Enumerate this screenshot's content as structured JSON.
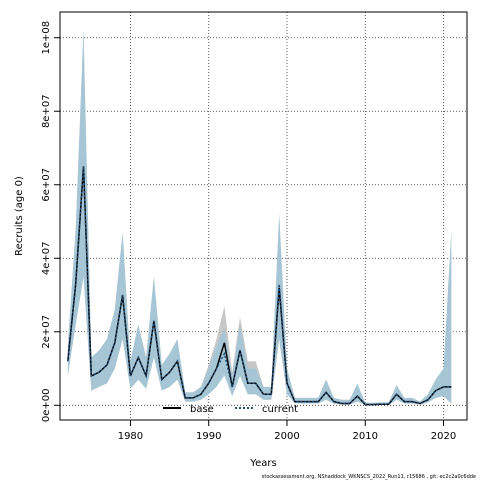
{
  "chart_data": {
    "type": "line",
    "title": "",
    "xlabel": "Years",
    "ylabel": "Recruits (age 0)",
    "xlim": [
      1971,
      2023
    ],
    "ylim": [
      -4000000,
      107000000
    ],
    "x_ticks": [
      1980,
      1990,
      2000,
      2010,
      2020
    ],
    "y_ticks": [
      0,
      20000000,
      40000000,
      60000000,
      80000000,
      100000000
    ],
    "y_tick_labels": [
      "0e+00",
      "2e+07",
      "4e+07",
      "6e+07",
      "8e+07",
      "1e+08"
    ],
    "grid": true,
    "legend_position": "bottom-center",
    "colors": {
      "base_band": "#bdbdbd",
      "current_band": "#9ec6da",
      "base_line": "#000000",
      "current_line": "#1f4e79"
    },
    "x": [
      1972,
      1973,
      1974,
      1975,
      1976,
      1977,
      1978,
      1979,
      1980,
      1981,
      1982,
      1983,
      1984,
      1985,
      1986,
      1987,
      1988,
      1989,
      1990,
      1991,
      1992,
      1993,
      1994,
      1995,
      1996,
      1997,
      1998,
      1999,
      2000,
      2001,
      2002,
      2003,
      2004,
      2005,
      2006,
      2007,
      2008,
      2009,
      2010,
      2011,
      2012,
      2013,
      2014,
      2015,
      2016,
      2017,
      2018,
      2019,
      2020,
      2021
    ],
    "series": [
      {
        "name": "base",
        "style": "solid",
        "values": [
          12000000,
          33000000,
          65000000,
          8000000,
          9000000,
          11000000,
          17000000,
          30000000,
          8000000,
          13000000,
          8000000,
          23000000,
          7000000,
          9000000,
          12000000,
          2000000,
          2000000,
          3000000,
          6000000,
          10000000,
          17000000,
          5000000,
          15000000,
          6000000,
          6000000,
          3000000,
          3000000,
          32000000,
          6000000,
          1000000,
          1000000,
          1000000,
          1000000,
          3500000,
          1000000,
          500000,
          500000,
          2500000,
          200000,
          200000,
          300000,
          300000,
          3000000,
          1000000,
          1000000,
          500000,
          1500000,
          4000000,
          5000000,
          5000000
        ],
        "lower": [
          8000000,
          22000000,
          35000000,
          4000000,
          5000000,
          6000000,
          10000000,
          18000000,
          4500000,
          7000000,
          4500000,
          13000000,
          4000000,
          5000000,
          7000000,
          1000000,
          1000000,
          1500000,
          3000000,
          5000000,
          9000000,
          2500000,
          8000000,
          3000000,
          3000000,
          1500000,
          1500000,
          18000000,
          3000000,
          500000,
          500000,
          500000,
          500000,
          1500000,
          500000,
          200000,
          200000,
          1000000,
          100000,
          100000,
          100000,
          100000,
          1500000,
          500000,
          500000,
          200000,
          800000,
          2000000,
          2500000,
          500000
        ],
        "upper": [
          16000000,
          48000000,
          102000000,
          13000000,
          15000000,
          18000000,
          26000000,
          47000000,
          12000000,
          22000000,
          13000000,
          35000000,
          11000000,
          14000000,
          18000000,
          3500000,
          3500000,
          5000000,
          11000000,
          18000000,
          27000000,
          9000000,
          24000000,
          12000000,
          12000000,
          5000000,
          5000000,
          52000000,
          10000000,
          2000000,
          2000000,
          2000000,
          2000000,
          7000000,
          2000000,
          1500000,
          1500000,
          5500000,
          700000,
          700000,
          800000,
          800000,
          5500000,
          2000000,
          2000000,
          1000000,
          3000000,
          7000000,
          10000000,
          47000000
        ]
      },
      {
        "name": "current",
        "style": "dotted",
        "values": [
          12000000,
          33000000,
          65000000,
          8000000,
          9000000,
          11000000,
          17000000,
          30000000,
          8000000,
          13000000,
          8000000,
          23000000,
          7000000,
          9000000,
          12000000,
          2000000,
          2000000,
          3000000,
          6000000,
          10000000,
          14000000,
          5000000,
          15000000,
          6000000,
          6000000,
          3000000,
          3000000,
          33000000,
          6000000,
          1000000,
          1000000,
          1000000,
          1000000,
          3500000,
          1000000,
          500000,
          500000,
          2500000,
          200000,
          200000,
          300000,
          300000,
          3000000,
          1000000,
          1000000,
          500000,
          1500000,
          4000000,
          5000000,
          5000000
        ],
        "lower": [
          8000000,
          22000000,
          35000000,
          4000000,
          5000000,
          6000000,
          10000000,
          18000000,
          4500000,
          7000000,
          4500000,
          13000000,
          4000000,
          5000000,
          7000000,
          1000000,
          1000000,
          1500000,
          3000000,
          5000000,
          8000000,
          2500000,
          8000000,
          3000000,
          3000000,
          1500000,
          1500000,
          18000000,
          3000000,
          500000,
          500000,
          500000,
          500000,
          1500000,
          500000,
          200000,
          200000,
          1000000,
          100000,
          100000,
          100000,
          100000,
          1500000,
          500000,
          500000,
          200000,
          800000,
          2000000,
          2500000,
          500000
        ],
        "upper": [
          16000000,
          48000000,
          102000000,
          13000000,
          15000000,
          18000000,
          26000000,
          47000000,
          12000000,
          22000000,
          13000000,
          35000000,
          11000000,
          14000000,
          18000000,
          3500000,
          3500000,
          5000000,
          10000000,
          16000000,
          21000000,
          8000000,
          22000000,
          10000000,
          10000000,
          5000000,
          5000000,
          52000000,
          10000000,
          2000000,
          2000000,
          2000000,
          2000000,
          7000000,
          2000000,
          1500000,
          1500000,
          6000000,
          700000,
          700000,
          800000,
          800000,
          5500000,
          2000000,
          2000000,
          1000000,
          3000000,
          7000000,
          10000000,
          47000000
        ]
      }
    ],
    "footer": "stockassessment.org, NShaddock_WKNSCS_2022_Run11, r15686 , git: ec2c2a0c6dde"
  }
}
